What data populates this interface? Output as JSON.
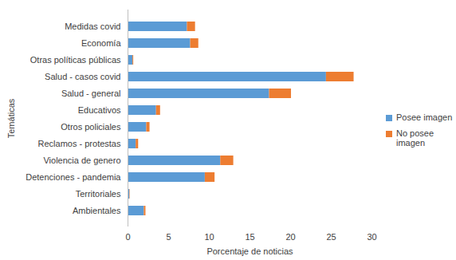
{
  "chart_data": {
    "type": "bar",
    "orientation": "horizontal",
    "stacked": true,
    "x_label": "Porcentaje de noticias",
    "y_label": "Temáticas",
    "categories": [
      "Medidas covid",
      "Economía",
      "Otras políticas públicas",
      "Salud - casos covid",
      "Salud - general",
      "Educativos",
      "Otros policiales",
      "Reclamos - protestas",
      "Violencia de genero",
      "Detenciones - pandemia",
      "Territoriales",
      "Ambientales"
    ],
    "series": [
      {
        "name": "Posee imagen",
        "color": "#5b9bd5",
        "values": [
          7.3,
          7.7,
          0.6,
          24.4,
          17.4,
          3.5,
          2.3,
          1.0,
          11.4,
          9.5,
          0.2,
          2.0
        ]
      },
      {
        "name": "No posee imagen",
        "color": "#ed7d31",
        "values": [
          1.0,
          1.0,
          0.1,
          3.4,
          2.7,
          0.5,
          0.4,
          0.3,
          1.6,
          1.2,
          0.05,
          0.2
        ]
      }
    ],
    "xlim": [
      0,
      30
    ],
    "xticks": [
      0,
      5,
      10,
      15,
      20,
      25,
      30
    ],
    "grid": false,
    "legend": "right"
  }
}
